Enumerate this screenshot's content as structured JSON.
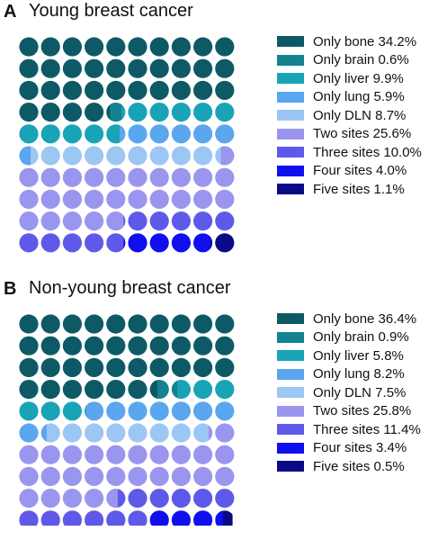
{
  "chart_data": [
    {
      "type": "waffle",
      "panel_letter": "A",
      "title": "Young breast cancer",
      "grid": "10x10",
      "series": [
        {
          "name": "Only bone 34.2%",
          "value": 34.2,
          "color": "#0d5a66"
        },
        {
          "name": "Only brain 0.6%",
          "value": 0.6,
          "color": "#12838f"
        },
        {
          "name": "Only liver 9.9%",
          "value": 9.9,
          "color": "#19a3b7"
        },
        {
          "name": "Only lung 5.9%",
          "value": 5.9,
          "color": "#5aa6ef"
        },
        {
          "name": "Only DLN 8.7%",
          "value": 8.7,
          "color": "#9cc6f4"
        },
        {
          "name": "Two sites 25.6%",
          "value": 25.6,
          "color": "#9a95ee"
        },
        {
          "name": "Three sites 10.0%",
          "value": 10.0,
          "color": "#5f59ea"
        },
        {
          "name": "Four sites 4.0%",
          "value": 4.0,
          "color": "#0f0ff0"
        },
        {
          "name": "Five sites 1.1%",
          "value": 1.1,
          "color": "#0a0a88"
        }
      ]
    },
    {
      "type": "waffle",
      "panel_letter": "B",
      "title": "Non-young breast cancer",
      "grid": "10x10",
      "series": [
        {
          "name": "Only bone 36.4%",
          "value": 36.4,
          "color": "#0d5a66"
        },
        {
          "name": "Only brain 0.9%",
          "value": 0.9,
          "color": "#12838f"
        },
        {
          "name": "Only liver 5.8%",
          "value": 5.8,
          "color": "#19a3b7"
        },
        {
          "name": "Only lung 8.2%",
          "value": 8.2,
          "color": "#5aa6ef"
        },
        {
          "name": "Only DLN 7.5%",
          "value": 7.5,
          "color": "#9cc6f4"
        },
        {
          "name": "Two sites 25.8%",
          "value": 25.8,
          "color": "#9a95ee"
        },
        {
          "name": "Three sites 11.4%",
          "value": 11.4,
          "color": "#5f59ea"
        },
        {
          "name": "Four sites 3.4%",
          "value": 3.4,
          "color": "#0f0ff0"
        },
        {
          "name": "Five sites 0.5%",
          "value": 0.5,
          "color": "#0a0a88"
        }
      ]
    }
  ]
}
